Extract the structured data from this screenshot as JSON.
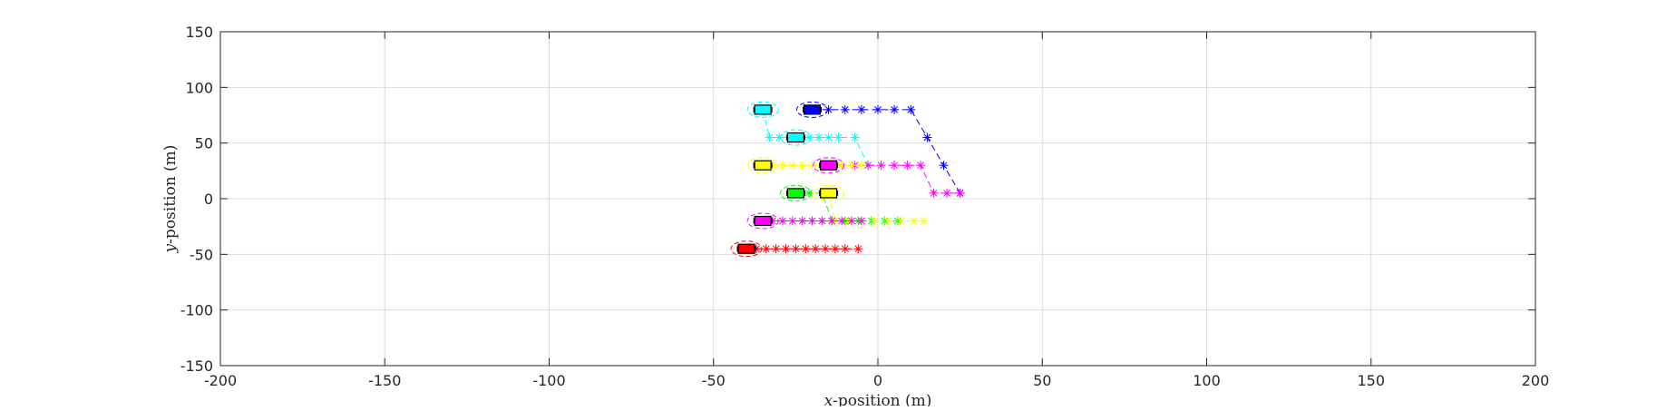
{
  "chart_data": {
    "type": "scatter",
    "title": "",
    "xlabel": "x-position (m)",
    "ylabel": "y-position (m)",
    "xlabel_var": "x",
    "xlabel_rest": "-position (m)",
    "ylabel_var": "y",
    "ylabel_rest": "-position (m)",
    "xlim": [
      -200,
      200
    ],
    "ylim": [
      -150,
      150
    ],
    "xticks": [
      -200,
      -150,
      -100,
      -50,
      0,
      50,
      100,
      150,
      200
    ],
    "yticks": [
      -150,
      -100,
      -50,
      0,
      50,
      100,
      150
    ],
    "grid": true,
    "legend": "none",
    "series": [
      {
        "color": "#0000ff",
        "vehicle": [
          -20,
          80
        ],
        "trajectory": [
          [
            -20,
            80
          ],
          [
            -15,
            80
          ],
          [
            -10,
            80
          ],
          [
            -5,
            80
          ],
          [
            0,
            80
          ],
          [
            5,
            80
          ],
          [
            10,
            80
          ],
          [
            15,
            55
          ],
          [
            20,
            30
          ],
          [
            25,
            5
          ]
        ]
      },
      {
        "color": "#00ffff",
        "vehicle": [
          -35,
          80
        ],
        "trajectory": [
          [
            -35,
            80
          ],
          [
            -33,
            55
          ],
          [
            -30,
            55
          ],
          [
            -27,
            55
          ],
          [
            -24,
            55
          ],
          [
            -21,
            55
          ],
          [
            -18,
            55
          ],
          [
            -15,
            55
          ],
          [
            -12,
            55
          ],
          [
            -7,
            55
          ],
          [
            -3,
            30
          ]
        ]
      },
      {
        "color": "#00ffff",
        "vehicle": [
          -25,
          55
        ],
        "trajectory": []
      },
      {
        "color": "#ff00ff",
        "vehicle": [
          -15,
          30
        ],
        "trajectory": [
          [
            -15,
            30
          ],
          [
            -11,
            30
          ],
          [
            -7,
            30
          ],
          [
            -3,
            30
          ],
          [
            1,
            30
          ],
          [
            5,
            30
          ],
          [
            9,
            30
          ],
          [
            13,
            30
          ],
          [
            17,
            5
          ],
          [
            21,
            5
          ],
          [
            25,
            5
          ]
        ]
      },
      {
        "color": "#ffff00",
        "vehicle": [
          -35,
          30
        ],
        "trajectory": [
          [
            -35,
            30
          ],
          [
            -32,
            30
          ],
          [
            -29,
            30
          ],
          [
            -26,
            30
          ],
          [
            -23,
            30
          ],
          [
            -20,
            30
          ],
          [
            -17,
            30
          ],
          [
            -14,
            30
          ],
          [
            -11,
            30
          ],
          [
            -8,
            30
          ],
          [
            -5,
            30
          ]
        ]
      },
      {
        "color": "#00ff00",
        "vehicle": [
          -25,
          5
        ],
        "trajectory": [
          [
            -25,
            5
          ],
          [
            -21,
            5
          ],
          [
            -17,
            5
          ],
          [
            -14,
            -20
          ],
          [
            -10,
            -20
          ],
          [
            -6,
            -20
          ],
          [
            -2,
            -20
          ],
          [
            2,
            -20
          ],
          [
            6,
            -20
          ]
        ]
      },
      {
        "color": "#ffff00",
        "vehicle": [
          -15,
          5
        ],
        "trajectory": [
          [
            -15,
            5
          ],
          [
            -13,
            -20
          ],
          [
            -9,
            -20
          ],
          [
            -5,
            -20
          ],
          [
            -1,
            -20
          ],
          [
            3,
            -20
          ],
          [
            7,
            -20
          ],
          [
            11,
            -20
          ],
          [
            14,
            -20
          ]
        ]
      },
      {
        "color": "#ff00ff",
        "vehicle": [
          -35,
          -20
        ],
        "trajectory": [
          [
            -35,
            -20
          ],
          [
            -32,
            -20
          ],
          [
            -29,
            -20
          ],
          [
            -26,
            -20
          ],
          [
            -23,
            -20
          ],
          [
            -20,
            -20
          ],
          [
            -17,
            -20
          ],
          [
            -14,
            -20
          ],
          [
            -11,
            -20
          ],
          [
            -8,
            -20
          ],
          [
            -5,
            -20
          ]
        ]
      },
      {
        "color": "#ff0000",
        "vehicle": [
          -40,
          -45
        ],
        "trajectory": [
          [
            -40,
            -45
          ],
          [
            -37,
            -45
          ],
          [
            -34,
            -45
          ],
          [
            -31,
            -45
          ],
          [
            -28,
            -45
          ],
          [
            -25,
            -45
          ],
          [
            -22,
            -45
          ],
          [
            -19,
            -45
          ],
          [
            -16,
            -45
          ],
          [
            -13,
            -45
          ],
          [
            -10,
            -45
          ],
          [
            -6,
            -45
          ]
        ]
      }
    ]
  }
}
